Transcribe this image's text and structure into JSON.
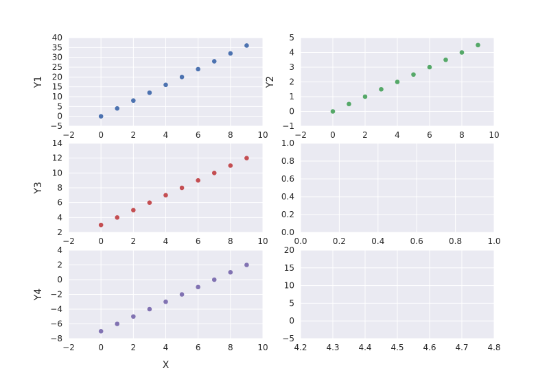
{
  "chart_data": [
    {
      "type": "scatter",
      "ylabel": "Y1",
      "xlabel": "",
      "color": "#4c72b0",
      "x": [
        0,
        1,
        2,
        3,
        4,
        5,
        6,
        7,
        8,
        9
      ],
      "y": [
        0,
        4,
        8,
        12,
        16,
        20,
        24,
        28,
        32,
        36
      ],
      "xlim": [
        -2,
        10
      ],
      "ylim": [
        -5,
        40
      ],
      "xticks": [
        -2,
        0,
        2,
        4,
        6,
        8,
        10
      ],
      "xtick_labels": [
        "−2",
        "0",
        "2",
        "4",
        "6",
        "8",
        "10"
      ],
      "yticks": [
        -5,
        0,
        5,
        10,
        15,
        20,
        25,
        30,
        35,
        40
      ],
      "ytick_labels": [
        "−5",
        "0",
        "5",
        "10",
        "15",
        "20",
        "25",
        "30",
        "35",
        "40"
      ],
      "grid": true
    },
    {
      "type": "scatter",
      "ylabel": "Y2",
      "xlabel": "",
      "color": "#55a868",
      "x": [
        0,
        1,
        2,
        3,
        4,
        5,
        6,
        7,
        8,
        9
      ],
      "y": [
        0,
        0.5,
        1,
        1.5,
        2,
        2.5,
        3,
        3.5,
        4,
        4.5
      ],
      "xlim": [
        -2,
        10
      ],
      "ylim": [
        -1,
        5
      ],
      "xticks": [
        -2,
        0,
        2,
        4,
        6,
        8,
        10
      ],
      "xtick_labels": [
        "−2",
        "0",
        "2",
        "4",
        "6",
        "8",
        "10"
      ],
      "yticks": [
        -1,
        0,
        1,
        2,
        3,
        4,
        5
      ],
      "ytick_labels": [
        "−1",
        "0",
        "1",
        "2",
        "3",
        "4",
        "5"
      ],
      "grid": true
    },
    {
      "type": "scatter",
      "ylabel": "Y3",
      "xlabel": "",
      "color": "#c44e52",
      "x": [
        0,
        1,
        2,
        3,
        4,
        5,
        6,
        7,
        8,
        9
      ],
      "y": [
        3,
        4,
        5,
        6,
        7,
        8,
        9,
        10,
        11,
        12
      ],
      "xlim": [
        -2,
        10
      ],
      "ylim": [
        2,
        14
      ],
      "xticks": [
        -2,
        0,
        2,
        4,
        6,
        8,
        10
      ],
      "xtick_labels": [
        "−2",
        "0",
        "2",
        "4",
        "6",
        "8",
        "10"
      ],
      "yticks": [
        2,
        4,
        6,
        8,
        10,
        12,
        14
      ],
      "ytick_labels": [
        "2",
        "4",
        "6",
        "8",
        "10",
        "12",
        "14"
      ],
      "grid": true
    },
    {
      "type": "scatter",
      "ylabel": "",
      "xlabel": "",
      "color": "#8172b2",
      "x": [],
      "y": [],
      "xlim": [
        0,
        1
      ],
      "ylim": [
        0,
        1
      ],
      "xticks": [
        0,
        0.2,
        0.4,
        0.6,
        0.8,
        1.0
      ],
      "xtick_labels": [
        "0.0",
        "0.2",
        "0.4",
        "0.6",
        "0.8",
        "1.0"
      ],
      "yticks": [
        0,
        0.2,
        0.4,
        0.6,
        0.8,
        1.0
      ],
      "ytick_labels": [
        "0.0",
        "0.2",
        "0.4",
        "0.6",
        "0.8",
        "1.0"
      ],
      "grid": true
    },
    {
      "type": "scatter",
      "ylabel": "Y4",
      "xlabel": "X",
      "color": "#8172b2",
      "x": [
        0,
        1,
        2,
        3,
        4,
        5,
        6,
        7,
        8,
        9
      ],
      "y": [
        -7,
        -6,
        -5,
        -4,
        -3,
        -2,
        -1,
        0,
        1,
        2
      ],
      "xlim": [
        -2,
        10
      ],
      "ylim": [
        -8,
        4
      ],
      "xticks": [
        -2,
        0,
        2,
        4,
        6,
        8,
        10
      ],
      "xtick_labels": [
        "−2",
        "0",
        "2",
        "4",
        "6",
        "8",
        "10"
      ],
      "yticks": [
        -8,
        -6,
        -4,
        -2,
        0,
        2,
        4
      ],
      "ytick_labels": [
        "−8",
        "−6",
        "−4",
        "−2",
        "0",
        "2",
        "4"
      ],
      "grid": true
    },
    {
      "type": "scatter",
      "ylabel": "",
      "xlabel": "",
      "color": "#8172b2",
      "x": [],
      "y": [],
      "xlim": [
        4.2,
        4.8
      ],
      "ylim": [
        -5,
        20
      ],
      "xticks": [
        4.2,
        4.3,
        4.4,
        4.5,
        4.6,
        4.7,
        4.8
      ],
      "xtick_labels": [
        "4.2",
        "4.3",
        "4.4",
        "4.5",
        "4.6",
        "4.7",
        "4.8"
      ],
      "yticks": [
        -5,
        0,
        5,
        10,
        15,
        20
      ],
      "ytick_labels": [
        "−5",
        "0",
        "5",
        "10",
        "15",
        "20"
      ],
      "grid": true
    }
  ],
  "colors": {
    "axes_background": "#eaeaf2",
    "grid": "#ffffff",
    "text": "#262626"
  }
}
